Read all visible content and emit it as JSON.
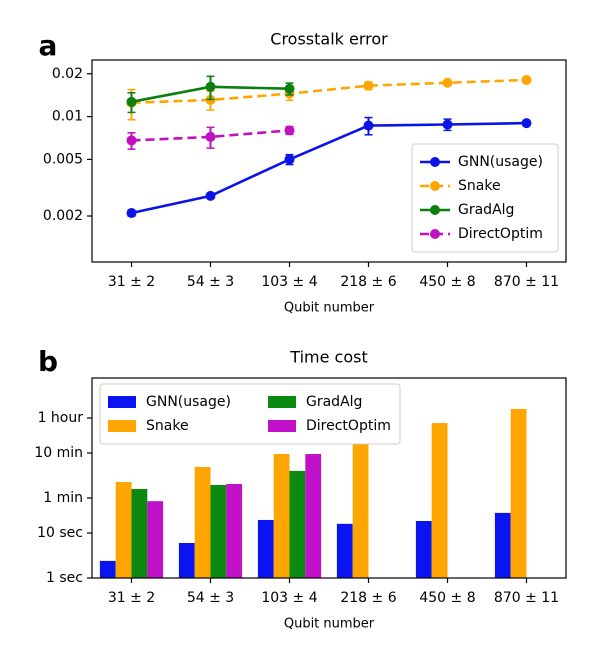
{
  "chart_data": [
    {
      "type": "line",
      "label": "a",
      "title": "Crosstalk error",
      "xlabel": "Qubit number",
      "categories": [
        "31 ± 2",
        "54 ± 3",
        "103 ± 4",
        "218 ± 6",
        "450 ± 8",
        "870 ± 11"
      ],
      "log_scale": true,
      "grid": false,
      "legend": "lower right",
      "ylim": [
        0.00095,
        0.025
      ],
      "yticks": [
        0.002,
        0.005,
        0.01,
        0.02
      ],
      "series": [
        {
          "name": "GNN(usage)",
          "color": "#0a14e6",
          "dashed": false,
          "values": [
            0.0021,
            0.00277,
            0.005,
            0.00865,
            0.0088,
            0.009
          ],
          "errors": [
            0.0001,
            0.0001,
            0.0004,
            0.0012,
            0.0008,
            0.0003
          ]
        },
        {
          "name": "Snake",
          "color": "#ffa500",
          "dashed": true,
          "values": [
            0.0125,
            0.0131,
            0.0145,
            0.0165,
            0.0173,
            0.0181
          ],
          "errors": [
            0.003,
            0.002,
            0.0015,
            0.001,
            0.0005,
            0.0003
          ]
        },
        {
          "name": "GradAlg",
          "color": "#0a8010",
          "dashed": false,
          "values": [
            0.0127,
            0.0162,
            0.0157,
            null,
            null,
            null
          ],
          "errors": [
            0.002,
            0.003,
            0.0015,
            null,
            null,
            null
          ]
        },
        {
          "name": "DirectOptim",
          "color": "#c010c0",
          "dashed": true,
          "values": [
            0.0068,
            0.0072,
            0.008,
            null,
            null,
            null
          ],
          "errors": [
            0.0009,
            0.0012,
            0.0005,
            null,
            null,
            null
          ]
        }
      ]
    },
    {
      "type": "bar",
      "label": "b",
      "title": "Time cost",
      "xlabel": "Qubit number",
      "categories": [
        "31 ± 2",
        "54 ± 3",
        "103 ± 4",
        "218 ± 6",
        "450 ± 8",
        "870 ± 11"
      ],
      "log_scale": true,
      "grid": false,
      "legend": "upper left",
      "legend_ncol": 2,
      "ylim": [
        1,
        27900
      ],
      "yticks": [
        {
          "value": 1,
          "label": "1 sec"
        },
        {
          "value": 10,
          "label": "10 sec"
        },
        {
          "value": 60,
          "label": "1 min"
        },
        {
          "value": 600,
          "label": "10 min"
        },
        {
          "value": 3600,
          "label": "1 hour"
        }
      ],
      "series": [
        {
          "name": "GNN(usage)",
          "color": "#0a14f0",
          "values": [
            2.4,
            6,
            19.5,
            16,
            18.5,
            28
          ]
        },
        {
          "name": "Snake",
          "color": "#ffa500",
          "values": [
            136,
            293,
            570,
            1360,
            2780,
            5700
          ]
        },
        {
          "name": "GradAlg",
          "color": "#0a8a10",
          "values": [
            95,
            117,
            240,
            null,
            null,
            null
          ]
        },
        {
          "name": "DirectOptim",
          "color": "#c010c8",
          "values": [
            51,
            123,
            570,
            null,
            null,
            null
          ]
        }
      ]
    }
  ]
}
